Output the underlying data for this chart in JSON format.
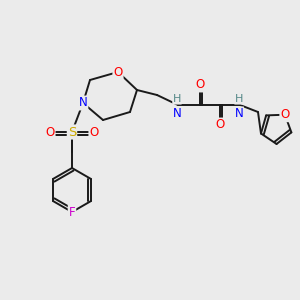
{
  "bg_color": "#ebebeb",
  "bond_color": "#1a1a1a",
  "atom_colors": {
    "O": "#ff0000",
    "N": "#0000ff",
    "S": "#ccaa00",
    "F": "#cc00cc",
    "H": "#558888",
    "C": "#1a1a1a"
  },
  "lw": 1.4,
  "fontsize": 8.5
}
